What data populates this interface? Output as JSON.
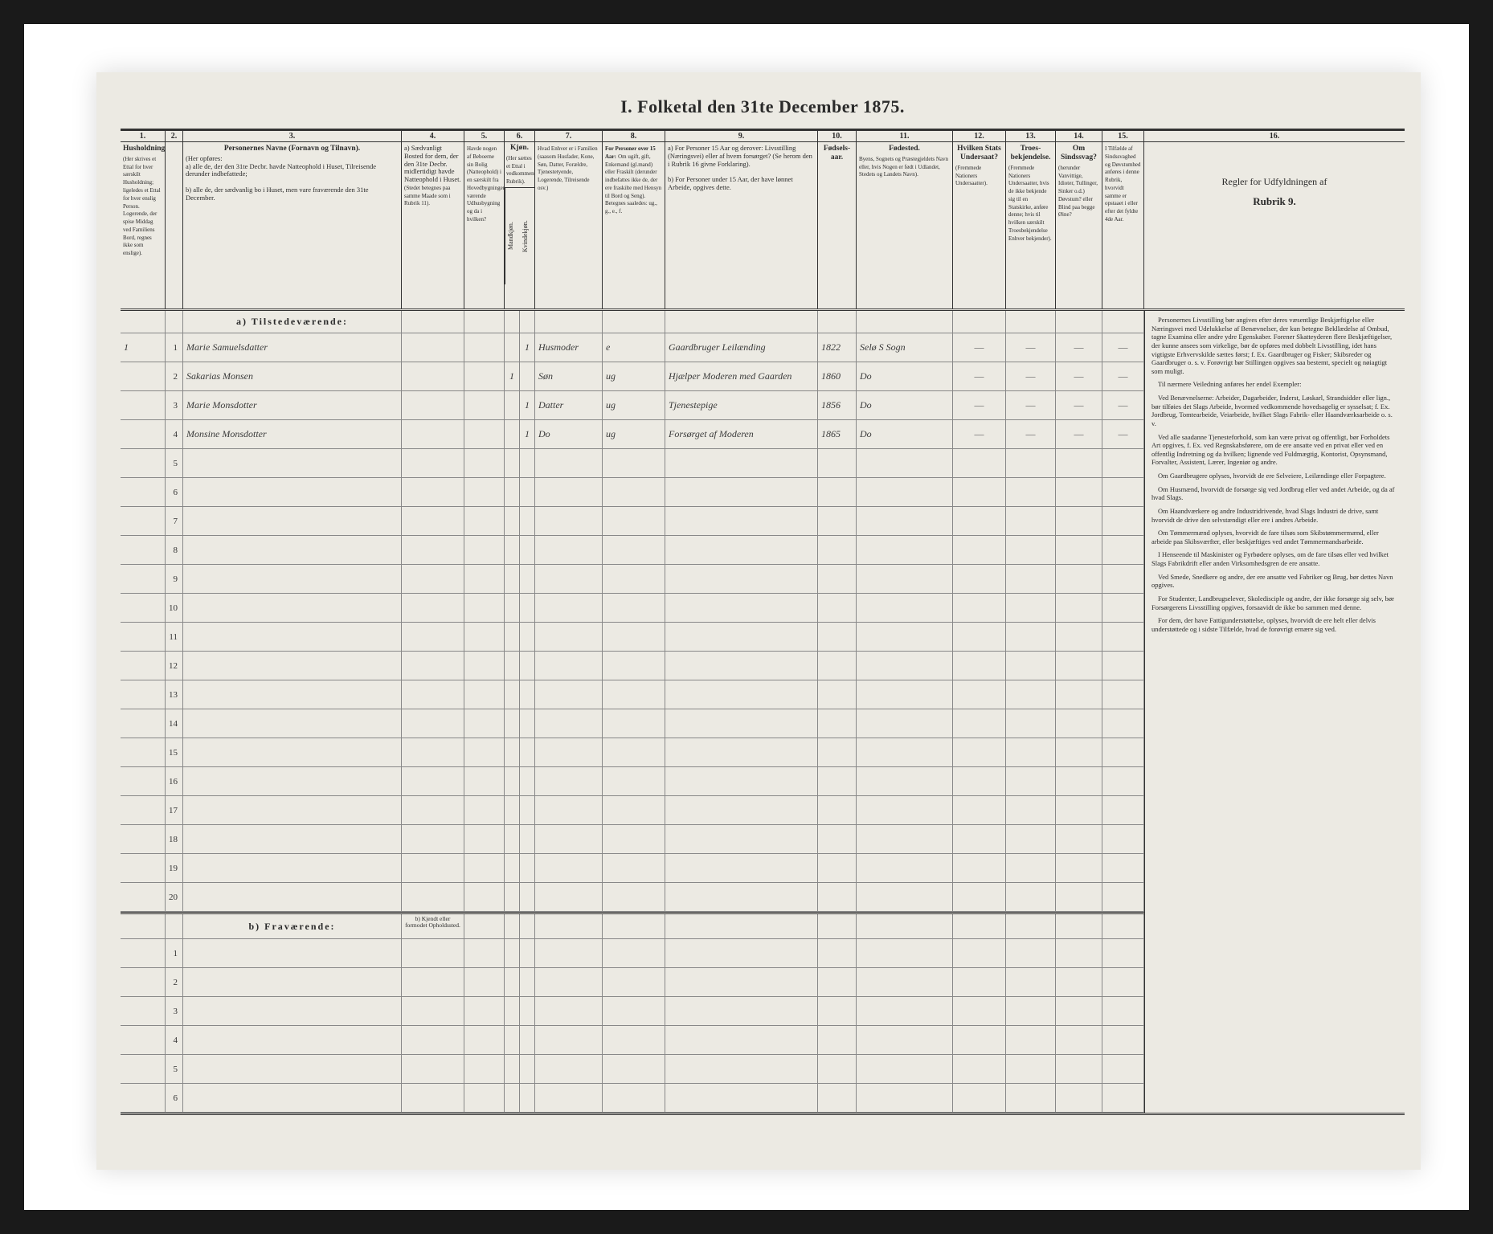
{
  "title": "I. Folketal den 31te December 1875.",
  "colnums": [
    "1.",
    "2.",
    "3.",
    "4.",
    "5.",
    "6.",
    "7.",
    "8.",
    "9.",
    "10.",
    "11.",
    "12.",
    "13.",
    "14.",
    "15.",
    "16."
  ],
  "headers": {
    "c1": "Husholdninger.",
    "c1_sub": "(Her skrives et Ettal for hver særskilt Husholdning; ligeledes et Ettal for hver enslig Person.",
    "c1_note": "Logerende, der spise Middag ved Familiens Bord, regnes ikke som enslige).",
    "c3_b": "Personernes Navne (Fornavn og Tilnavn).",
    "c3_sub": "(Her opføres:",
    "c3_a": "a) alle de, der den 31te Decbr. havde Natteophold i Huset, Tilreisende derunder indbefattede;",
    "c3_b2": "b) alle de, der sædvanlig bo i Huset, men vare fraværende den 31te December.",
    "c4_b": "a) Sædvanligt Bosted for dem, der den 31te Decbr. midlertidigt havde Natteophold i Huset.",
    "c4_sub": "(Stedet betegnes paa samme Maade som i Rubrik 11).",
    "c5": "Havde nogen af Beboerne sin Bolig (Natteophold) i en særskilt fra Hovedbygningen værende Udhusbygning og da i hvilken?",
    "c6_b": "Kjøn.",
    "c6_sub": "(Her sættes et Ettal i vedkommende Rubrik).",
    "c6a": "Mandkjøn.",
    "c6b": "Kvindekjøn.",
    "c7": "Hvad Enhver er i Familien (saasom Husfader, Kone, Søn, Datter, Forældre, Tjenestetyende, Logerende, Tilreisende osv.)",
    "c8_b": "For Personer over 15 Aar:",
    "c8": "Om ugift, gift, Enkemand (gl.mand) eller Fraskilt (derunder indbefattes ikke de, der ere fraskilte med Hensyn til Bord og Seng).",
    "c8_note": "Betegnes saaledes: ug., g., e., f.",
    "c9_a": "a) For Personer 15 Aar og derover: Livsstilling (Næringsvei) eller af hvem forsørget? (Se herom den i Rubrik 16 givne Forklaring).",
    "c9_b": "b) For Personer under 15 Aar, der have lønnet Arbeide, opgives dette.",
    "c10": "Fødsels-aar.",
    "c11": "Byens, Sognets og Præstegjeldets Navn eller, hvis Nogen er født i Udlandet, Stedets og Landets Navn).",
    "c11_b": "Fødested.",
    "c12_b": "Hvilken Stats Undersaat?",
    "c12": "(Fremmede Nationers Undersaatter).",
    "c13_b": "Troes-bekjendelse.",
    "c13": "(Fremmede Nationers Undersaatter, hvis de ikke bekjende sig til en Statskirke, anføre denne; hvis til hvilken særskilt Troesbekjendelse Enhver bekjender).",
    "c14_b": "Om Sindssvag?",
    "c14": "(herunder Vanvittige, Idioter, Tullinger, Sinker o.d.) Døvstum? eller Blind paa begge Øine?",
    "c15": "I Tilfælde af Sindssvaghed og Døvstumhed anføres i denne Rubrik, hvorvidt samme er opstaaet i eller efter det fyldte 4de Aar.",
    "c16_b": "Regler for Udfyldningen af",
    "c16_sub": "Rubrik 9."
  },
  "section_a": "a) Tilstedeværende:",
  "section_b": "b) Fraværende:",
  "section_b_note": "b) Kjendt eller formodet Opholdssted.",
  "rows_a": [
    {
      "n": "1",
      "hh": "1",
      "name": "Marie Samuelsdatter",
      "c6a": "",
      "c6b": "1",
      "rel": "Husmoder",
      "civ": "e",
      "occ": "Gaardbruger Leilænding",
      "year": "1822",
      "birthplace": "Selø S Sogn",
      "c12": "—",
      "c13": "—",
      "c14": "—",
      "c15": "—"
    },
    {
      "n": "2",
      "hh": "",
      "name": "Sakarias Monsen",
      "c6a": "1",
      "c6b": "",
      "rel": "Søn",
      "civ": "ug",
      "occ": "Hjælper Moderen med Gaarden",
      "year": "1860",
      "birthplace": "Do",
      "c12": "—",
      "c13": "—",
      "c14": "—",
      "c15": "—"
    },
    {
      "n": "3",
      "hh": "",
      "name": "Marie Monsdotter",
      "c6a": "",
      "c6b": "1",
      "rel": "Datter",
      "civ": "ug",
      "occ": "Tjenestepige",
      "year": "1856",
      "birthplace": "Do",
      "c12": "—",
      "c13": "—",
      "c14": "—",
      "c15": "—"
    },
    {
      "n": "4",
      "hh": "",
      "name": "Monsine Monsdotter",
      "c6a": "",
      "c6b": "1",
      "rel": "Do",
      "civ": "ug",
      "occ": "Forsørget af Moderen",
      "year": "1865",
      "birthplace": "Do",
      "c12": "—",
      "c13": "—",
      "c14": "—",
      "c15": "—"
    }
  ],
  "blank_a": [
    "5",
    "6",
    "7",
    "8",
    "9",
    "10",
    "11",
    "12",
    "13",
    "14",
    "15",
    "16",
    "17",
    "18",
    "19",
    "20"
  ],
  "blank_b": [
    "1",
    "2",
    "3",
    "4",
    "5",
    "6"
  ],
  "rules": [
    "Personernes Livsstilling bør angives efter deres væsentlige Beskjæftigelse eller Næringsvei med Udelukkelse af Benævnelser, der kun betegne Bekllædelse af Ombud, tagne Examina eller andre ydre Egenskaber. Forener Skatteyderen flere Beskjæftigelser, der kunne ansees som virkelige, bør de opføres med dobbelt Livsstilling, idet hans vigtigste Erhvervskilde sættes først; f. Ex. Gaardbruger og Fisker; Skibsreder og Gaardbruger o. s. v. Forøvrigt bør Stillingen opgives saa bestemt, specielt og nøiagtigt som muligt.",
    "Til nærmere Veiledning anføres her endel Exempler:",
    "Ved Benævnelserne: Arbeider, Dagarbeider, Inderst, Løskarl, Strandsidder eller lign., bør tilføies det Slags Arbeide, hvormed vedkommende hovedsagelig er sysselsat; f. Ex. Jordbrug, Tomtearbeide, Veiarbeide, hvilket Slags Fabrik- eller Haandværksarbeide o. s. v.",
    "Ved alle saadanne Tjenesteforhold, som kan være privat og offentligt, bør Forholdets Art opgives, f. Ex. ved Regnskabsførere, om de ere ansatte ved en privat eller ved en offentlig Indretning og da hvilken; lignende ved Fuldmægtig, Kontorist, Opsynsmand, Forvalter, Assistent, Lærer, Ingeniør og andre.",
    "Om Gaardbrugere oplyses, hvorvidt de ere Selveiere, Leilændinge eller Forpagtere.",
    "Om Husmænd, hvorvidt de forsørge sig ved Jordbrug eller ved andet Arbeide, og da af hvad Slags.",
    "Om Haandværkere og andre Industridrivende, hvad Slags Industri de drive, samt hvorvidt de drive den selvstændigt eller ere i andres Arbeide.",
    "Om Tømmermænd oplyses, hvorvidt de fare tilsøs som Skibstømmermænd, eller arbeide paa Skibsværfter, eller beskjæftiges ved andet Tømmermandsarbeide.",
    "I Henseende til Maskinister og Fyrbødere oplyses, om de fare tilsøs eller ved hvilket Slags Fabrikdrift eller anden Virksomhedsgren de ere ansatte.",
    "Ved Smede, Snedkere og andre, der ere ansatte ved Fabriker og Brug, bør dettes Navn opgives.",
    "For Studenter, Landbrugselever, Skoledisciple og andre, der ikke forsørge sig selv, bør Forsørgerens Livsstilling opgives, forsaavidt de ikke bo sammen med denne.",
    "For dem, der have Fattigunderstøttelse, oplyses, hvorvidt de ere helt eller delvis understøttede og i sidste Tilfælde, hvad de forøvrigt ernære sig ved."
  ]
}
